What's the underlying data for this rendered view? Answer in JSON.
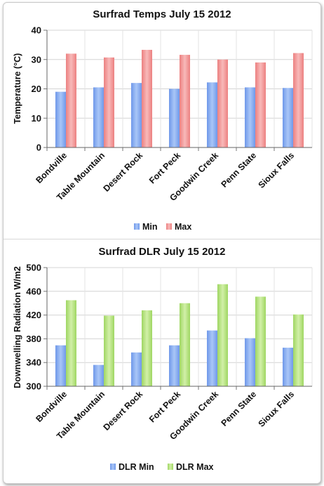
{
  "chart_data": [
    {
      "type": "bar",
      "title": "Surfrad Temps July 15 2012",
      "ylabel": "Temperature (°C)",
      "xlabel": "",
      "categories": [
        "Bondville",
        "Table Mountain",
        "Desert Rock",
        "Fort Peck",
        "Goodwin Creek",
        "Penn State",
        "Sioux Falls"
      ],
      "series": [
        {
          "name": "Min",
          "color": "#88aef2",
          "values": [
            19,
            20.5,
            22,
            20,
            22.2,
            20.5,
            20.3
          ]
        },
        {
          "name": "Max",
          "color": "#f29a9a",
          "values": [
            32,
            30.7,
            33.3,
            31.6,
            30,
            29,
            32.2
          ]
        }
      ],
      "ylim": [
        0,
        40
      ],
      "yticks": [
        0,
        10,
        20,
        30,
        40
      ],
      "grid": true,
      "legend": "bottom"
    },
    {
      "type": "bar",
      "title": "Surfrad DLR July 15 2012",
      "ylabel": "Downwelling Radiation W/m2",
      "xlabel": "",
      "categories": [
        "Bondville",
        "Table Mountain",
        "Desert Rock",
        "Fort Peck",
        "Goodwin Creek",
        "Penn State",
        "Sioux Falls"
      ],
      "series": [
        {
          "name": "DLR Min",
          "color": "#88aef2",
          "values": [
            369,
            336,
            357,
            369,
            394,
            381,
            365
          ]
        },
        {
          "name": "DLR Max",
          "color": "#b5e27e",
          "values": [
            445,
            419,
            428,
            440,
            472,
            451,
            421
          ]
        }
      ],
      "ylim": [
        300,
        500
      ],
      "yticks": [
        300,
        340,
        380,
        420,
        460,
        500
      ],
      "grid": true,
      "legend": "bottom"
    }
  ]
}
